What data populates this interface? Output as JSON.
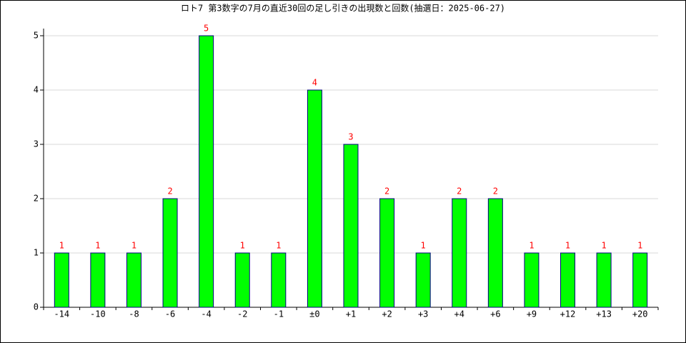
{
  "chart_data": {
    "type": "bar",
    "title": "ロト7 第3数字の7月の直近30回の足し引きの出現数と回数(抽選日：2025-06-27)",
    "categories": [
      "-14",
      "-10",
      "-8",
      "-6",
      "-4",
      "-2",
      "-1",
      "±0",
      "+1",
      "+2",
      "+3",
      "+4",
      "+6",
      "+9",
      "+12",
      "+13",
      "+20"
    ],
    "values": [
      1,
      1,
      1,
      2,
      5,
      1,
      1,
      4,
      3,
      2,
      1,
      2,
      2,
      1,
      1,
      1,
      1
    ],
    "color": "#00ff00",
    "edge_color": "#000080",
    "label_color": "#ff0000",
    "ylim": [
      0,
      5
    ],
    "yticks": [
      0,
      1,
      2,
      3,
      4,
      5
    ],
    "grid": true
  }
}
